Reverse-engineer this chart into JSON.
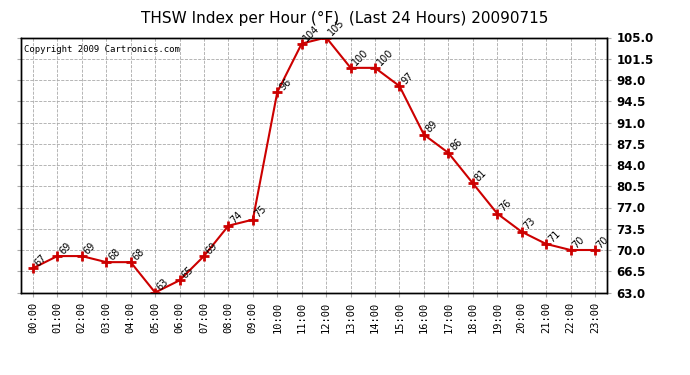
{
  "title": "THSW Index per Hour (°F)  (Last 24 Hours) 20090715",
  "copyright": "Copyright 2009 Cartronics.com",
  "hours": [
    "00:00",
    "01:00",
    "02:00",
    "03:00",
    "04:00",
    "05:00",
    "06:00",
    "07:00",
    "08:00",
    "09:00",
    "10:00",
    "11:00",
    "12:00",
    "13:00",
    "14:00",
    "15:00",
    "16:00",
    "17:00",
    "18:00",
    "19:00",
    "20:00",
    "21:00",
    "22:00",
    "23:00"
  ],
  "values": [
    67,
    69,
    69,
    68,
    68,
    63,
    65,
    69,
    74,
    75,
    96,
    104,
    105,
    100,
    100,
    97,
    89,
    86,
    81,
    76,
    73,
    71,
    70,
    70
  ],
  "line_color": "#cc0000",
  "marker": "+",
  "marker_color": "#cc0000",
  "ylim": [
    63.0,
    105.0
  ],
  "yticks": [
    63.0,
    66.5,
    70.0,
    73.5,
    77.0,
    80.5,
    84.0,
    87.5,
    91.0,
    94.5,
    98.0,
    101.5,
    105.0
  ],
  "ytick_labels": [
    "63.0",
    "66.5",
    "70.0",
    "73.5",
    "77.0",
    "80.5",
    "84.0",
    "87.5",
    "91.0",
    "94.5",
    "98.0",
    "101.5",
    "105.0"
  ],
  "bg_color": "#ffffff",
  "grid_color": "#aaaaaa",
  "title_fontsize": 11,
  "label_fontsize": 7.5,
  "annotation_fontsize": 7.0,
  "copyright_fontsize": 6.5
}
